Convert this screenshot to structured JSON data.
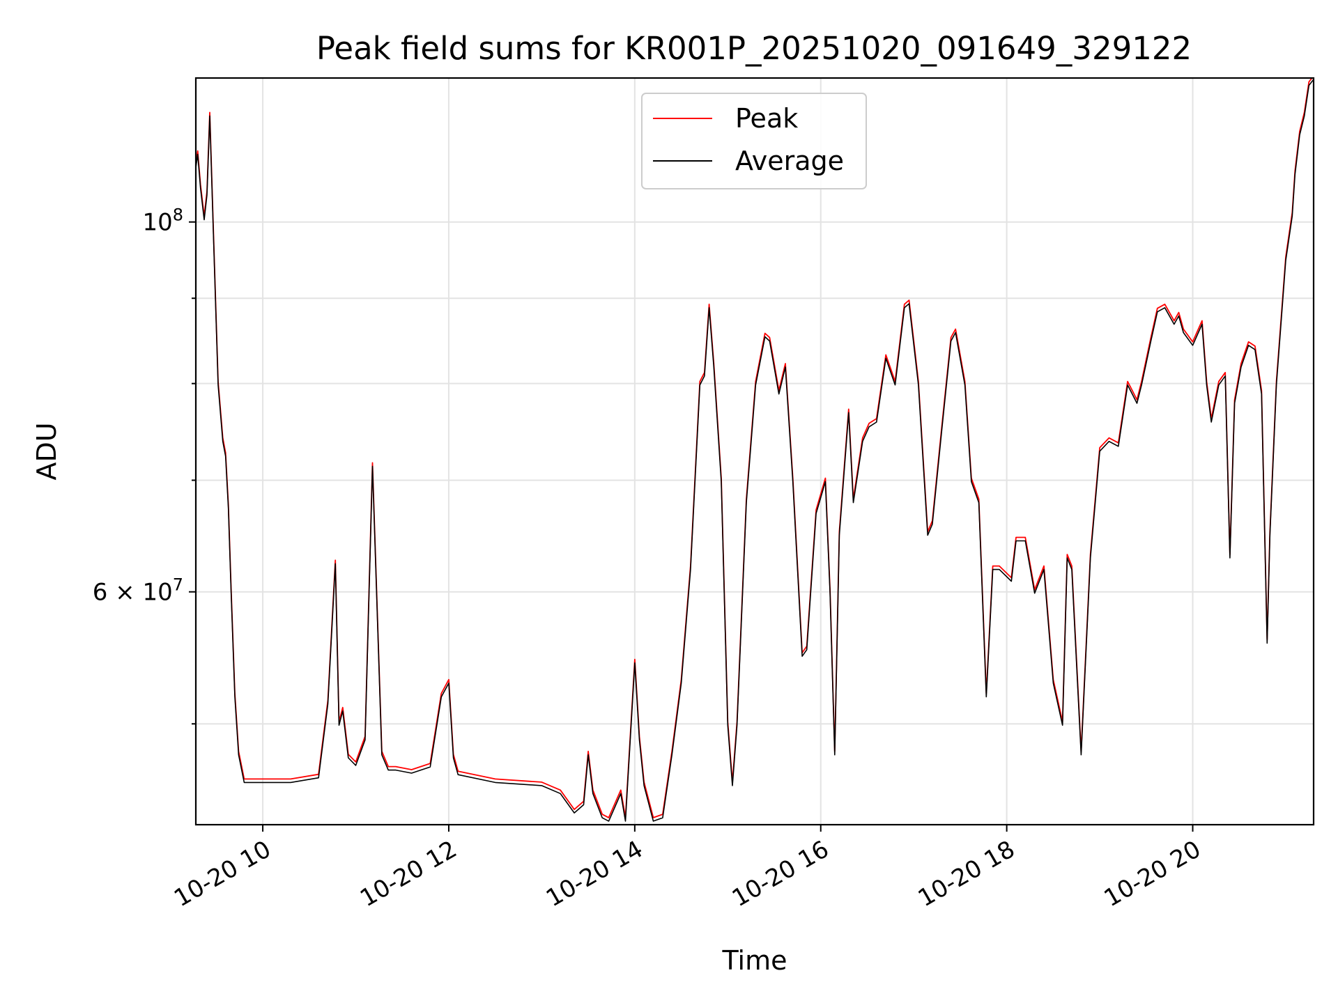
{
  "chart_data": {
    "type": "line",
    "title": "Peak field sums for KR001P_20251020_091649_329122",
    "xlabel": "Time",
    "ylabel": "ADU",
    "yscale": "log",
    "ylim": [
      43500000,
      122000000
    ],
    "xlim": [
      9.28,
      21.3
    ],
    "x_ticks": [
      {
        "value": 10,
        "label": "10-20 10"
      },
      {
        "value": 12,
        "label": "10-20 12"
      },
      {
        "value": 14,
        "label": "10-20 14"
      },
      {
        "value": 16,
        "label": "10-20 16"
      },
      {
        "value": 18,
        "label": "10-20 18"
      },
      {
        "value": 20,
        "label": "10-20 20"
      }
    ],
    "y_major_ticks": [
      {
        "value": 100000000,
        "base": "10",
        "exp": "8"
      },
      {
        "value": 60000000,
        "mantissa": "6",
        "base": "10",
        "exp": "7"
      }
    ],
    "y_minor_ticks": [
      50000000,
      70000000,
      80000000,
      90000000
    ],
    "grid": true,
    "legend_position": "upper-center",
    "series": [
      {
        "name": "Peak",
        "color": "#ff0000"
      },
      {
        "name": "Average",
        "color": "#000000"
      }
    ],
    "x": [
      9.28,
      9.3,
      9.33,
      9.37,
      9.4,
      9.43,
      9.47,
      9.52,
      9.57,
      9.6,
      9.63,
      9.66,
      9.7,
      9.74,
      9.8,
      10.0,
      10.3,
      10.6,
      10.7,
      10.78,
      10.82,
      10.86,
      10.92,
      11.0,
      11.1,
      11.18,
      11.28,
      11.35,
      11.43,
      11.6,
      11.8,
      11.92,
      12.0,
      12.05,
      12.1,
      12.5,
      13.0,
      13.2,
      13.35,
      13.45,
      13.5,
      13.55,
      13.65,
      13.72,
      13.85,
      13.9,
      14.0,
      14.05,
      14.1,
      14.2,
      14.3,
      14.4,
      14.5,
      14.6,
      14.7,
      14.75,
      14.8,
      14.85,
      14.93,
      15.0,
      15.05,
      15.1,
      15.2,
      15.3,
      15.4,
      15.45,
      15.55,
      15.62,
      15.7,
      15.8,
      15.85,
      15.95,
      16.05,
      16.1,
      16.15,
      16.2,
      16.3,
      16.35,
      16.45,
      16.52,
      16.6,
      16.7,
      16.8,
      16.9,
      16.95,
      17.05,
      17.15,
      17.2,
      17.3,
      17.4,
      17.45,
      17.55,
      17.62,
      17.7,
      17.78,
      17.85,
      17.92,
      18.05,
      18.1,
      18.2,
      18.3,
      18.4,
      18.5,
      18.6,
      18.65,
      18.7,
      18.8,
      18.9,
      19.0,
      19.1,
      19.2,
      19.3,
      19.35,
      19.4,
      19.45,
      19.55,
      19.62,
      19.7,
      19.8,
      19.85,
      19.9,
      20.0,
      20.1,
      20.15,
      20.2,
      20.28,
      20.35,
      20.4,
      20.45,
      20.52,
      20.6,
      20.67,
      20.74,
      20.8,
      20.83,
      20.9,
      21.0,
      21.07,
      21.1,
      21.15,
      21.2,
      21.25,
      21.3
    ],
    "values": [
      108000000,
      110000000,
      105000000,
      100500000,
      104000000,
      116000000,
      98000000,
      80000000,
      74000000,
      72500000,
      67500000,
      60000000,
      52000000,
      48000000,
      46200000,
      46200000,
      46200000,
      46500000,
      51500000,
      62500000,
      50000000,
      51000000,
      47800000,
      47300000,
      49000000,
      71500000,
      48000000,
      47000000,
      47000000,
      46800000,
      47200000,
      52000000,
      53000000,
      47800000,
      46700000,
      46200000,
      46000000,
      45500000,
      44300000,
      44800000,
      48000000,
      45500000,
      44000000,
      43800000,
      45500000,
      43800000,
      54500000,
      49000000,
      46000000,
      43800000,
      44000000,
      48000000,
      53000000,
      62000000,
      80000000,
      81000000,
      89000000,
      82000000,
      70000000,
      50000000,
      46000000,
      50000000,
      68000000,
      80000000,
      85500000,
      85000000,
      79000000,
      82000000,
      70000000,
      55000000,
      55500000,
      67000000,
      70000000,
      60000000,
      48000000,
      65000000,
      77000000,
      68000000,
      74000000,
      75500000,
      76000000,
      83000000,
      80000000,
      89000000,
      89500000,
      80000000,
      65000000,
      66000000,
      75000000,
      85000000,
      86000000,
      80000000,
      70000000,
      68000000,
      52000000,
      62000000,
      62000000,
      61000000,
      64500000,
      64500000,
      60000000,
      62000000,
      53000000,
      50000000,
      63000000,
      62000000,
      48000000,
      63000000,
      73000000,
      74000000,
      73500000,
      80000000,
      79000000,
      78000000,
      80000000,
      85000000,
      88500000,
      89000000,
      87000000,
      88000000,
      86000000,
      84500000,
      87000000,
      80000000,
      76000000,
      80000000,
      81000000,
      63000000,
      78000000,
      82000000,
      84500000,
      84000000,
      79000000,
      56000000,
      65000000,
      80000000,
      95000000,
      101000000,
      107000000,
      113000000,
      116000000,
      121000000,
      122000000
    ]
  }
}
